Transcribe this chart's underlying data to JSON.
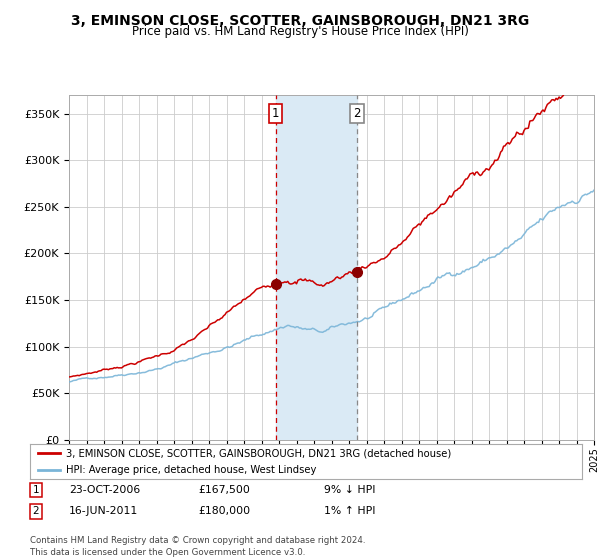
{
  "title": "3, EMINSON CLOSE, SCOTTER, GAINSBOROUGH, DN21 3RG",
  "subtitle": "Price paid vs. HM Land Registry's House Price Index (HPI)",
  "legend_line1": "3, EMINSON CLOSE, SCOTTER, GAINSBOROUGH, DN21 3RG (detached house)",
  "legend_line2": "HPI: Average price, detached house, West Lindsey",
  "transaction1_label": "1",
  "transaction1_date": "23-OCT-2006",
  "transaction1_price": 167500,
  "transaction1_note": "9% ↓ HPI",
  "transaction2_label": "2",
  "transaction2_date": "16-JUN-2011",
  "transaction2_price": 180000,
  "transaction2_note": "1% ↑ HPI",
  "footer": "Contains HM Land Registry data © Crown copyright and database right 2024.\nThis data is licensed under the Open Government Licence v3.0.",
  "hpi_color": "#7ab5d8",
  "price_color": "#cc0000",
  "dot_color": "#8b0000",
  "vline1_color": "#cc0000",
  "vline2_color": "#888888",
  "shade_color": "#daeaf5",
  "background_color": "#ffffff",
  "grid_color": "#cccccc",
  "ylim": [
    0,
    370000
  ],
  "x_start_year": 1995,
  "x_end_year": 2025,
  "transaction1_x": 2006.81,
  "transaction2_x": 2011.46
}
